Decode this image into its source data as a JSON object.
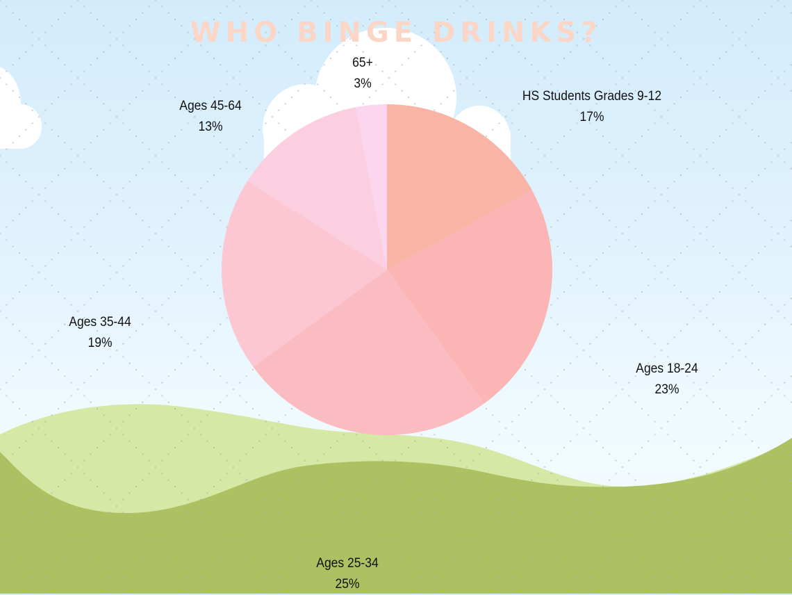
{
  "title": "WHO BINGE DRINKS?",
  "colors": {
    "title": "#fbd6c6",
    "sky_top": "#d3ecfb",
    "sky_bottom": "#f4fbff",
    "hill_light": "#d6e8a6",
    "hill_dark": "#adc062",
    "cloud": "#ffffff"
  },
  "labels": [
    {
      "name": "HS Students Grades 9-12",
      "pct": "17%"
    },
    {
      "name": "Ages 18-24",
      "pct": "23%"
    },
    {
      "name": "Ages 25-34",
      "pct": "25%"
    },
    {
      "name": "Ages 35-44",
      "pct": "19%"
    },
    {
      "name": "Ages 45-64",
      "pct": "13%"
    },
    {
      "name": "65+",
      "pct": "3%"
    }
  ],
  "chart_data": {
    "type": "pie",
    "title": "WHO BINGE DRINKS?",
    "categories": [
      "HS Students Grades 9-12",
      "Ages 18-24",
      "Ages 25-34",
      "Ages 35-44",
      "Ages 45-64",
      "65+"
    ],
    "values": [
      17,
      23,
      25,
      19,
      13,
      3
    ],
    "unit": "%",
    "colors": [
      "#f8b4a4",
      "#fab5b4",
      "#fbbcc1",
      "#fcc6d2",
      "#fbcfe0",
      "#fcd6ee"
    ],
    "start_angle": "12 o'clock",
    "direction": "clockwise",
    "legend": "none (outside data labels)"
  }
}
